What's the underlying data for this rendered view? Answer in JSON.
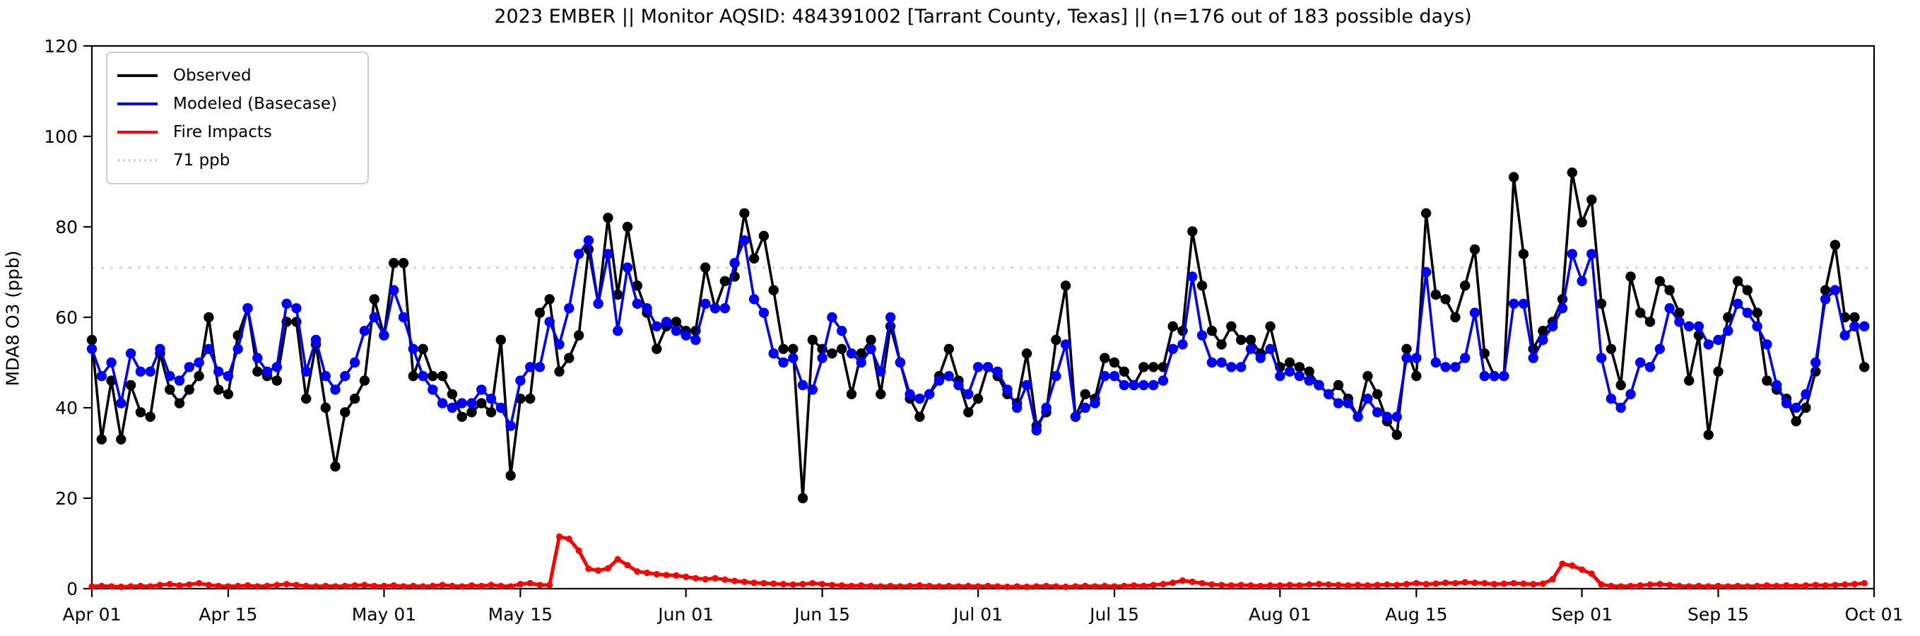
{
  "title": "2023 EMBER || Monitor AQSID: 484391002 [Tarrant County, Texas] || (n=176 out of 183 possible days)",
  "ylabel": "MDA8 O3 (ppb)",
  "legend": {
    "position": "upper-left",
    "items": [
      {
        "label": "Observed",
        "color": "#000000",
        "style": "solid"
      },
      {
        "label": "Modeled (Basecase)",
        "color": "#0000ff",
        "style": "solid"
      },
      {
        "label": "Fire Impacts",
        "color": "#ff0000",
        "style": "solid"
      },
      {
        "label": "71 ppb",
        "color": "#d9d9d9",
        "style": "dotted"
      }
    ]
  },
  "chart_data": {
    "type": "line",
    "title": "2023 EMBER || Monitor AQSID: 484391002 [Tarrant County, Texas] || (n=176 out of 183 possible days)",
    "xlabel": "",
    "ylabel": "MDA8 O3 (ppb)",
    "ylim": [
      0,
      120
    ],
    "yticks": [
      0,
      20,
      40,
      60,
      80,
      100,
      120
    ],
    "grid": false,
    "legend_position": "upper-left",
    "x_start_date": "Apr 01",
    "x_end_date": "Oct 01",
    "days_span": 183,
    "xticks": [
      {
        "label": "Apr 01",
        "day": 0
      },
      {
        "label": "Apr 15",
        "day": 14
      },
      {
        "label": "May 01",
        "day": 30
      },
      {
        "label": "May 15",
        "day": 44
      },
      {
        "label": "Jun 01",
        "day": 61
      },
      {
        "label": "Jun 15",
        "day": 75
      },
      {
        "label": "Jul 01",
        "day": 91
      },
      {
        "label": "Jul 15",
        "day": 105
      },
      {
        "label": "Aug 01",
        "day": 122
      },
      {
        "label": "Aug 15",
        "day": 136
      },
      {
        "label": "Sep 01",
        "day": 153
      },
      {
        "label": "Sep 15",
        "day": 167
      },
      {
        "label": "Oct 01",
        "day": 183
      }
    ],
    "threshold": {
      "value": 71,
      "label": "71 ppb",
      "color": "#d9d9d9"
    },
    "series": [
      {
        "name": "Observed",
        "color": "#000000",
        "values": [
          55,
          33,
          46,
          33,
          45,
          39,
          38,
          52,
          44,
          41,
          44,
          47,
          60,
          44,
          43,
          56,
          62,
          48,
          47,
          46,
          59,
          59,
          42,
          54,
          40,
          27,
          39,
          42,
          46,
          64,
          56,
          72,
          72,
          47,
          53,
          47,
          47,
          43,
          38,
          39,
          41,
          39,
          55,
          25,
          42,
          42,
          61,
          64,
          48,
          51,
          56,
          75,
          63,
          82,
          65,
          80,
          67,
          61,
          53,
          58,
          59,
          57,
          57,
          71,
          62,
          68,
          69,
          83,
          73,
          78,
          66,
          53,
          53,
          20,
          55,
          53,
          52,
          53,
          43,
          52,
          55,
          43,
          58,
          50,
          42,
          38,
          43,
          47,
          53,
          46,
          39,
          42,
          49,
          47,
          43,
          41,
          52,
          36,
          39,
          55,
          67,
          38,
          43,
          42,
          51,
          50,
          48,
          45,
          49,
          49,
          49,
          58,
          57,
          79,
          67,
          57,
          54,
          58,
          55,
          55,
          52,
          58,
          49,
          50,
          49,
          48,
          45,
          43,
          45,
          42,
          38,
          47,
          43,
          37,
          34,
          53,
          47,
          83,
          65,
          64,
          60,
          67,
          75,
          52,
          47,
          47,
          91,
          74,
          53,
          57,
          59,
          64,
          92,
          81,
          86,
          63,
          53,
          45,
          69,
          61,
          59,
          68,
          66,
          61,
          46,
          56,
          34,
          48,
          60,
          68,
          66,
          61,
          46,
          44,
          42,
          37,
          40,
          48,
          66,
          76,
          60,
          60,
          49
        ]
      },
      {
        "name": "Modeled (Basecase)",
        "color": "#0000ff",
        "values": [
          53,
          47,
          50,
          41,
          52,
          48,
          48,
          53,
          47,
          46,
          49,
          50,
          53,
          48,
          47,
          53,
          62,
          51,
          48,
          49,
          63,
          62,
          48,
          55,
          47,
          44,
          47,
          50,
          57,
          60,
          56,
          66,
          60,
          53,
          47,
          44,
          41,
          40,
          41,
          41,
          44,
          42,
          40,
          36,
          46,
          49,
          49,
          59,
          54,
          62,
          74,
          77,
          63,
          74,
          57,
          71,
          63,
          62,
          58,
          59,
          57,
          56,
          55,
          63,
          62,
          62,
          72,
          77,
          64,
          61,
          52,
          50,
          51,
          45,
          44,
          51,
          60,
          57,
          52,
          50,
          53,
          48,
          60,
          50,
          43,
          42,
          43,
          46,
          47,
          45,
          43,
          49,
          49,
          48,
          44,
          40,
          45,
          35,
          40,
          47,
          54,
          38,
          40,
          41,
          47,
          47,
          45,
          45,
          45,
          45,
          46,
          53,
          54,
          69,
          56,
          50,
          50,
          49,
          49,
          53,
          51,
          53,
          47,
          48,
          47,
          46,
          45,
          43,
          41,
          41,
          38,
          42,
          39,
          38,
          38,
          51,
          51,
          70,
          50,
          49,
          49,
          51,
          61,
          47,
          47,
          47,
          63,
          63,
          51,
          55,
          58,
          62,
          74,
          68,
          74,
          51,
          42,
          40,
          43,
          50,
          49,
          53,
          62,
          59,
          58,
          58,
          54,
          55,
          57,
          63,
          61,
          58,
          54,
          45,
          41,
          40,
          43,
          50,
          64,
          66,
          56,
          58,
          58
        ]
      },
      {
        "name": "Fire Impacts",
        "color": "#ff0000",
        "values": [
          0.5,
          0.6,
          0.5,
          0.4,
          0.5,
          0.6,
          0.5,
          0.8,
          1.0,
          0.7,
          0.9,
          1.2,
          0.8,
          0.6,
          0.5,
          0.6,
          0.7,
          0.5,
          0.6,
          0.8,
          1.0,
          0.8,
          0.6,
          0.5,
          0.6,
          0.5,
          0.6,
          0.7,
          0.8,
          0.6,
          0.6,
          0.7,
          0.5,
          0.6,
          0.5,
          0.6,
          0.8,
          0.6,
          0.5,
          0.7,
          0.6,
          0.8,
          0.6,
          0.5,
          1.0,
          1.2,
          0.8,
          0.8,
          11.5,
          11.0,
          8.4,
          4.4,
          4.0,
          4.5,
          6.5,
          5.2,
          3.8,
          3.5,
          3.2,
          3.0,
          2.9,
          2.6,
          2.3,
          2.1,
          2.3,
          2.0,
          1.7,
          1.5,
          1.3,
          1.2,
          1.1,
          1.0,
          0.9,
          1.0,
          1.2,
          1.0,
          0.8,
          0.7,
          0.6,
          0.7,
          0.6,
          0.5,
          0.6,
          0.5,
          0.6,
          0.7,
          0.6,
          0.5,
          0.6,
          0.5,
          0.6,
          0.5,
          0.6,
          0.5,
          0.4,
          0.5,
          0.4,
          0.5,
          0.6,
          0.5,
          0.4,
          0.5,
          0.6,
          0.5,
          0.6,
          0.5,
          0.6,
          0.7,
          0.6,
          0.8,
          1.0,
          1.3,
          1.8,
          1.5,
          1.2,
          0.9,
          0.8,
          0.7,
          0.8,
          0.7,
          0.6,
          0.7,
          0.7,
          0.8,
          0.7,
          0.9,
          1.0,
          0.9,
          0.8,
          0.7,
          0.8,
          0.7,
          0.8,
          0.9,
          0.8,
          1.0,
          1.2,
          1.0,
          1.1,
          1.3,
          1.2,
          1.4,
          1.3,
          1.2,
          1.0,
          1.1,
          1.2,
          1.1,
          1.0,
          1.1,
          2.1,
          5.5,
          5.1,
          4.2,
          3.3,
          0.9,
          0.6,
          0.5,
          0.6,
          0.7,
          0.9,
          1.0,
          0.8,
          0.6,
          0.5,
          0.6,
          0.5,
          0.6,
          0.5,
          0.6,
          0.5,
          0.6,
          0.7,
          0.6,
          0.7,
          0.6,
          0.7,
          0.8,
          0.7,
          0.8,
          0.9,
          1.0,
          1.2
        ]
      }
    ]
  }
}
